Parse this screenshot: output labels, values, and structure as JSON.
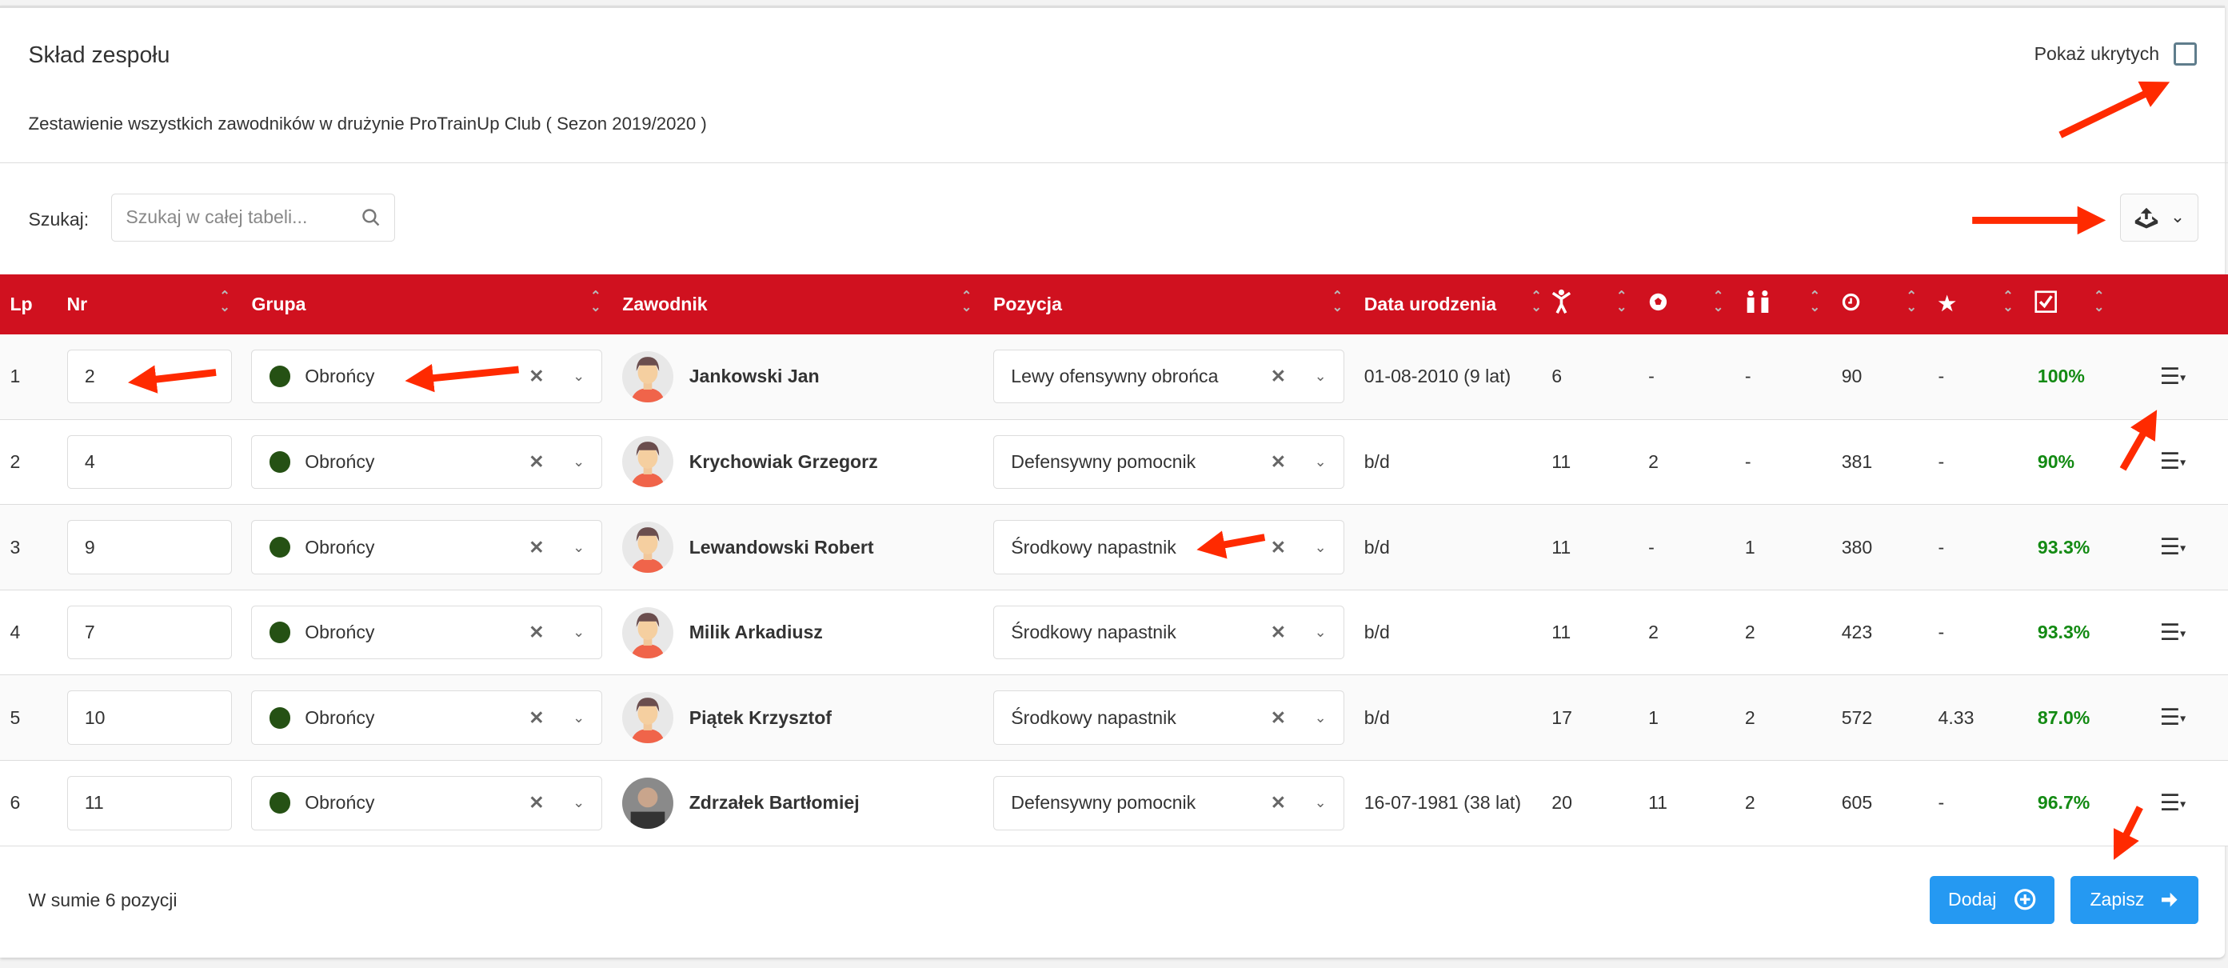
{
  "header": {
    "title": "Skład zespołu",
    "subtitle": "Zestawienie wszystkich zawodników w drużynie ProTrainUp Club ( Sezon 2019/2020 )",
    "show_hidden_label": "Pokaż ukrytych",
    "show_hidden_checked": false
  },
  "search": {
    "label": "Szukaj:",
    "placeholder": "Szukaj w całej tabeli..."
  },
  "export": {
    "icon": "export-tray-icon"
  },
  "table": {
    "header_color": "#d0111f",
    "columns": {
      "lp": "Lp",
      "nr": "Nr",
      "grupa": "Grupa",
      "zawodnik": "Zawodnik",
      "pozycja": "Pozycja",
      "data": "Data urodzenia"
    },
    "icon_columns": [
      "appearances-person-icon",
      "goals-ball-icon",
      "substitutions-people-icon",
      "minutes-clock-icon",
      "rating-star-icon",
      "attendance-check-icon"
    ],
    "rows": [
      {
        "lp": "1",
        "nr": "2",
        "grupa": "Obrońcy",
        "zawodnik": "Jankowski Jan",
        "pozycja": "Lewy ofensywny obrońca",
        "data": "01-08-2010 (9 lat)",
        "c1": "6",
        "c2": "-",
        "c3": "-",
        "c4": "90",
        "c5": "-",
        "c6": "100%"
      },
      {
        "lp": "2",
        "nr": "4",
        "grupa": "Obrońcy",
        "zawodnik": "Krychowiak Grzegorz",
        "pozycja": "Defensywny pomocnik",
        "data": "b/d",
        "c1": "11",
        "c2": "2",
        "c3": "-",
        "c4": "381",
        "c5": "-",
        "c6": "90%"
      },
      {
        "lp": "3",
        "nr": "9",
        "grupa": "Obrońcy",
        "zawodnik": "Lewandowski Robert",
        "pozycja": "Środkowy napastnik",
        "data": "b/d",
        "c1": "11",
        "c2": "-",
        "c3": "1",
        "c4": "380",
        "c5": "-",
        "c6": "93.3%"
      },
      {
        "lp": "4",
        "nr": "7",
        "grupa": "Obrońcy",
        "zawodnik": "Milik Arkadiusz",
        "pozycja": "Środkowy napastnik",
        "data": "b/d",
        "c1": "11",
        "c2": "2",
        "c3": "2",
        "c4": "423",
        "c5": "-",
        "c6": "93.3%"
      },
      {
        "lp": "5",
        "nr": "10",
        "grupa": "Obrońcy",
        "zawodnik": "Piątek Krzysztof",
        "pozycja": "Środkowy napastnik",
        "data": "b/d",
        "c1": "17",
        "c2": "1",
        "c3": "2",
        "c4": "572",
        "c5": "4.33",
        "c6": "87.0%"
      },
      {
        "lp": "6",
        "nr": "11",
        "grupa": "Obrońcy",
        "zawodnik": "Zdrzałek Bartłomiej",
        "pozycja": "Defensywny pomocnik",
        "data": "16-07-1981 (38 lat)",
        "c1": "20",
        "c2": "11",
        "c3": "2",
        "c4": "605",
        "c5": "-",
        "c6": "96.7%"
      }
    ]
  },
  "footer": {
    "summary": "W sumie 6 pozycji",
    "add_label": "Dodaj",
    "save_label": "Zapisz",
    "button_color": "#2599f2"
  }
}
